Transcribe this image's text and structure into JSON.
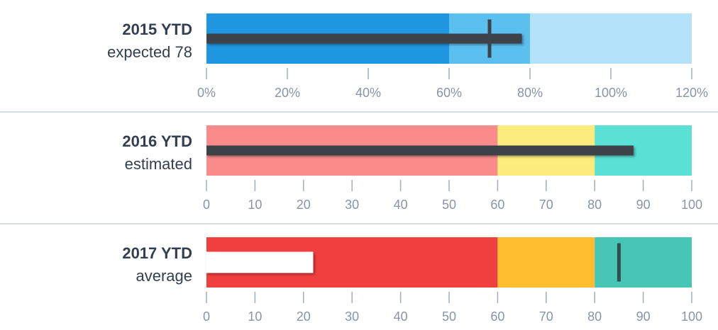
{
  "chart_data": [
    {
      "type": "bullet",
      "title": "2015 YTD",
      "subtitle": "expected 78",
      "scale": {
        "min": 0,
        "max": 120
      },
      "ticks": [
        0,
        20,
        40,
        60,
        80,
        100,
        120
      ],
      "tick_labels": [
        "0%",
        "20%",
        "40%",
        "60%",
        "80%",
        "100%",
        "120%"
      ],
      "ranges": [
        {
          "from": 0,
          "to": 60,
          "color": "#1e96e0"
        },
        {
          "from": 60,
          "to": 80,
          "color": "#5bbff0"
        },
        {
          "from": 80,
          "to": 120,
          "color": "#b3e2fa"
        }
      ],
      "measure": {
        "value": 78,
        "color": "#3c4349",
        "style": "thin"
      },
      "target": {
        "value": 70,
        "color": "#3c4349"
      }
    },
    {
      "type": "bullet",
      "title": "2016 YTD",
      "subtitle": "estimated",
      "scale": {
        "min": 0,
        "max": 100
      },
      "ticks": [
        0,
        10,
        20,
        30,
        40,
        50,
        60,
        70,
        80,
        90,
        100
      ],
      "tick_labels": [
        "0",
        "10",
        "20",
        "30",
        "40",
        "50",
        "60",
        "70",
        "80",
        "90",
        "100"
      ],
      "ranges": [
        {
          "from": 0,
          "to": 60,
          "color": "#f98b8b"
        },
        {
          "from": 60,
          "to": 80,
          "color": "#fcec7c"
        },
        {
          "from": 80,
          "to": 100,
          "color": "#5ae0d5"
        }
      ],
      "measure": {
        "value": 88,
        "color": "#3c4349",
        "style": "thin"
      },
      "target": null
    },
    {
      "type": "bullet",
      "title": "2017 YTD",
      "subtitle": "average",
      "scale": {
        "min": 0,
        "max": 100
      },
      "ticks": [
        0,
        10,
        20,
        30,
        40,
        50,
        60,
        70,
        80,
        90,
        100
      ],
      "tick_labels": [
        "0",
        "10",
        "20",
        "30",
        "40",
        "50",
        "60",
        "70",
        "80",
        "90",
        "100"
      ],
      "ranges": [
        {
          "from": 0,
          "to": 60,
          "color": "#ef3f3e"
        },
        {
          "from": 60,
          "to": 80,
          "color": "#fdbd2e"
        },
        {
          "from": 80,
          "to": 100,
          "color": "#47c6b5"
        }
      ],
      "measure": {
        "value": 22,
        "color": "#ffffff",
        "style": "thick"
      },
      "target": {
        "value": 85,
        "color": "#2f4f4f"
      }
    }
  ]
}
